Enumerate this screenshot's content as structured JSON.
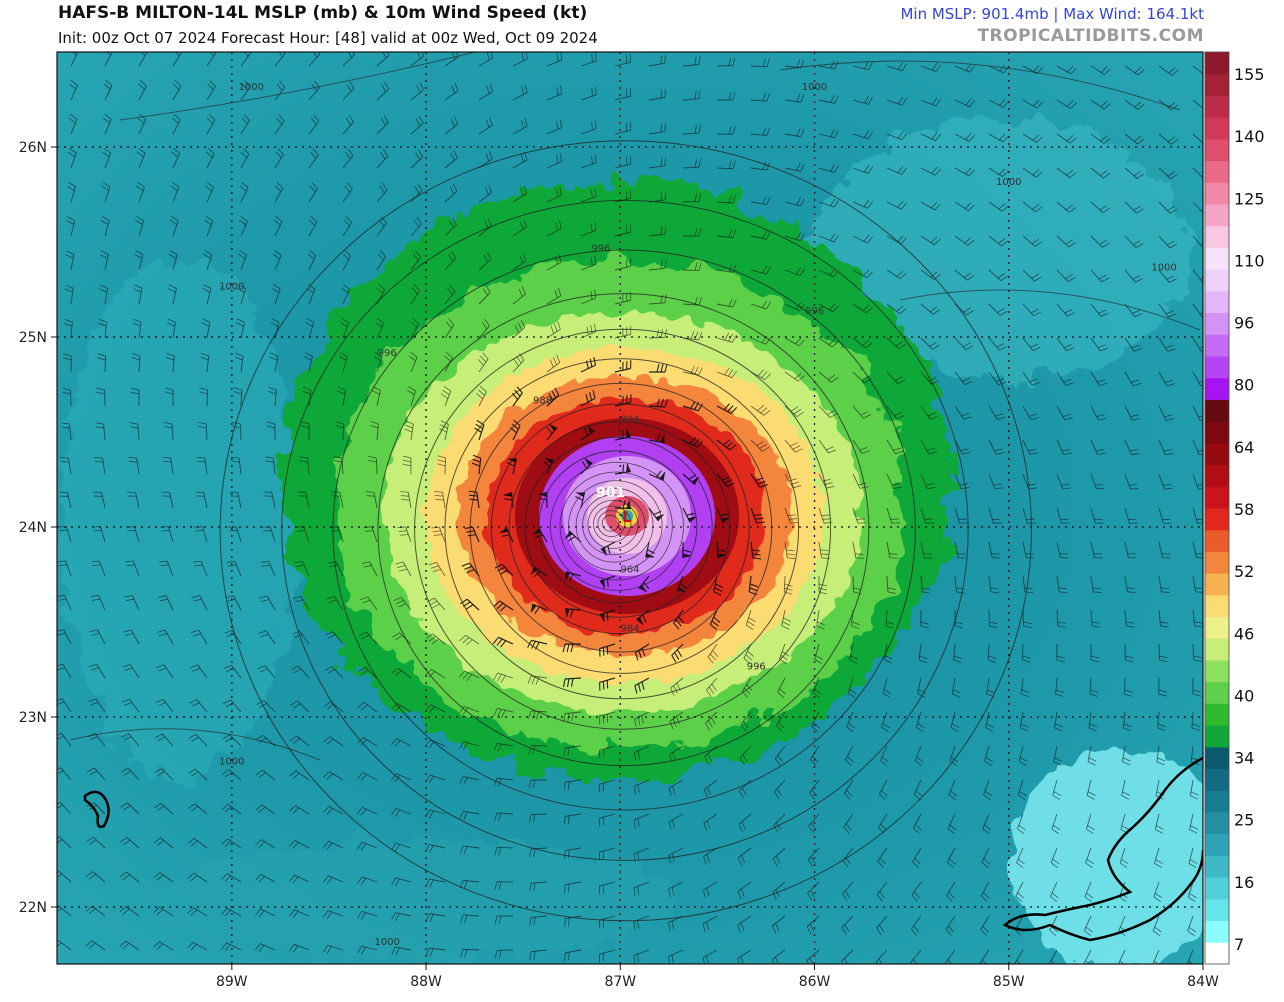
{
  "header": {
    "title": "HAFS-B MILTON-14L MSLP (mb) & 10m Wind Speed (kt)",
    "subtitle": "Init: 00z Oct 07 2024   Forecast Hour: [48]   valid at 00z Wed, Oct 09 2024",
    "stats": "Min MSLP: 901.4mb  |  Max Wind: 164.1kt",
    "brand": "TROPICALTIDBITS.COM"
  },
  "map": {
    "lon_range": [
      -89.9,
      -84.0
    ],
    "lat_range": [
      21.7,
      26.5
    ],
    "lon_ticks": [
      {
        "value": -89,
        "label": "89W"
      },
      {
        "value": -88,
        "label": "88W"
      },
      {
        "value": -87,
        "label": "87W"
      },
      {
        "value": -86,
        "label": "86W"
      },
      {
        "value": -85,
        "label": "85W"
      },
      {
        "value": -84,
        "label": "84W"
      }
    ],
    "lat_ticks": [
      {
        "value": 26,
        "label": "26N"
      },
      {
        "value": 25,
        "label": "25N"
      },
      {
        "value": 24,
        "label": "24N"
      },
      {
        "value": 23,
        "label": "23N"
      },
      {
        "value": 22,
        "label": "22N"
      }
    ],
    "storm_center": {
      "lon": -87.05,
      "lat": 24.02
    },
    "min_pressure_label": "901",
    "isobar_labels": [
      {
        "text": "1000",
        "lon": -88.9,
        "lat": 26.3
      },
      {
        "text": "1000",
        "lon": -86.0,
        "lat": 26.3
      },
      {
        "text": "1000",
        "lon": -85.0,
        "lat": 25.8
      },
      {
        "text": "1000",
        "lon": -84.2,
        "lat": 25.35
      },
      {
        "text": "1000",
        "lon": -89.0,
        "lat": 25.25
      },
      {
        "text": "996",
        "lon": -87.1,
        "lat": 25.45
      },
      {
        "text": "996",
        "lon": -88.2,
        "lat": 24.9
      },
      {
        "text": "996",
        "lon": -86.0,
        "lat": 25.12
      },
      {
        "text": "988",
        "lon": -87.4,
        "lat": 24.65
      },
      {
        "text": "984",
        "lon": -86.95,
        "lat": 24.55
      },
      {
        "text": "984",
        "lon": -86.95,
        "lat": 23.45
      },
      {
        "text": "964",
        "lon": -86.95,
        "lat": 23.76
      },
      {
        "text": "996",
        "lon": -86.3,
        "lat": 23.25
      },
      {
        "text": "1000",
        "lon": -89.0,
        "lat": 22.75
      },
      {
        "text": "1000",
        "lon": -88.2,
        "lat": 21.8
      }
    ]
  },
  "colorbar": {
    "labels": [
      "155",
      "140",
      "125",
      "110",
      "96",
      "80",
      "64",
      "58",
      "52",
      "46",
      "40",
      "34",
      "25",
      "16",
      "7"
    ],
    "colors": [
      "#ffffff",
      "#8cfdfd",
      "#66e6ec",
      "#52d0da",
      "#3fb9c8",
      "#30a4b6",
      "#2390a4",
      "#177d92",
      "#126b80",
      "#0c5a6e",
      "#10a838",
      "#2ebc2e",
      "#5cd04a",
      "#8ee060",
      "#c6ee78",
      "#eef08c",
      "#fbdc72",
      "#f9b250",
      "#f4853c",
      "#ea5c2a",
      "#e0291c",
      "#c8141a",
      "#b00e14",
      "#960a12",
      "#7c0810",
      "#640a10",
      "#a614f2",
      "#b444f4",
      "#c46cf4",
      "#d494f6",
      "#e2b6f8",
      "#eed2fa",
      "#f6e2fa",
      "#f8c8e2",
      "#f5a6c6",
      "#f088a8",
      "#ea6a8a",
      "#e04e6e",
      "#d03a58",
      "#bc2c48",
      "#a42238",
      "#8c1a2c"
    ]
  }
}
